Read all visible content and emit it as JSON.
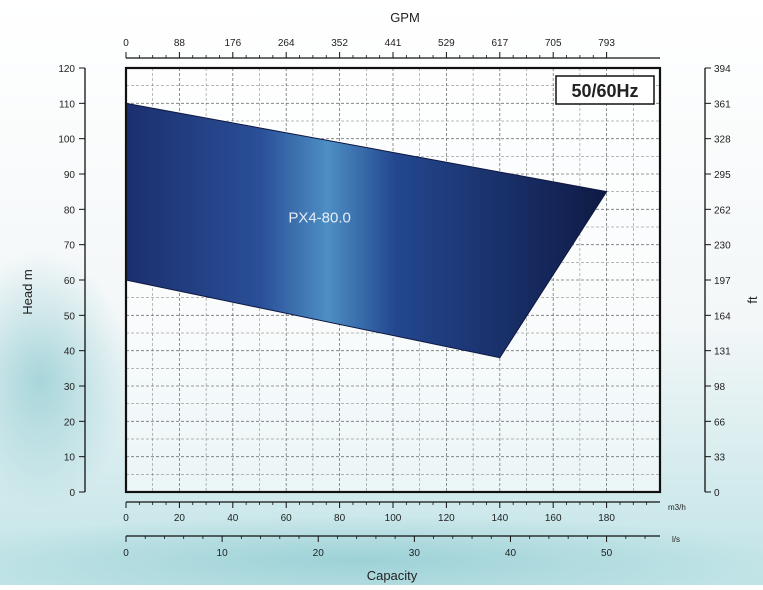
{
  "chart_data": {
    "type": "area",
    "title": "",
    "badge": "50/60Hz",
    "top_axis": {
      "label": "GPM",
      "ticks": [
        "0",
        "88",
        "176",
        "264",
        "352",
        "441",
        "529",
        "617",
        "705",
        "793"
      ]
    },
    "left_axis": {
      "label": "Head m",
      "ticks": [
        "0",
        "10",
        "20",
        "30",
        "40",
        "50",
        "60",
        "70",
        "80",
        "90",
        "100",
        "110",
        "120"
      ],
      "ylim": [
        0,
        120
      ]
    },
    "right_axis": {
      "label": "ft",
      "ticks": [
        "0",
        "33",
        "66",
        "98",
        "131",
        "164",
        "197",
        "230",
        "262",
        "295",
        "328",
        "361",
        "394"
      ]
    },
    "bottom_axis_m3h": {
      "unit": "m3/h",
      "ticks": [
        "0",
        "20",
        "40",
        "60",
        "80",
        "100",
        "120",
        "140",
        "160",
        "180"
      ],
      "xlim": [
        0,
        200
      ]
    },
    "bottom_axis_ls": {
      "unit": "l/s",
      "ticks": [
        "0",
        "10",
        "20",
        "30",
        "40",
        "50"
      ]
    },
    "xlabel": "Capacity",
    "series": [
      {
        "name": "PX4-80.0",
        "color": "#1f3f8a",
        "polygon_m3h_m": [
          [
            0,
            110
          ],
          [
            180,
            85
          ],
          [
            140,
            38
          ],
          [
            0,
            60
          ]
        ]
      }
    ],
    "grid": true
  }
}
